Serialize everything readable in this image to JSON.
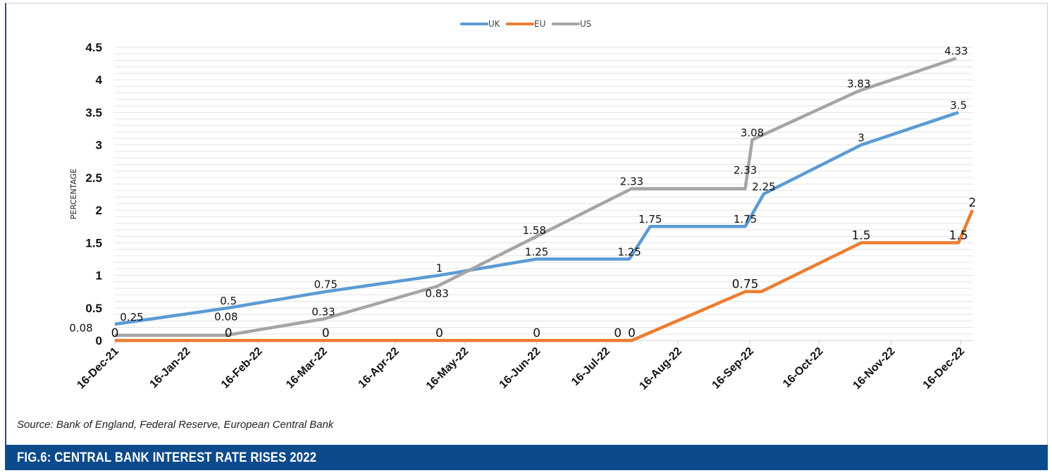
{
  "chart_data": {
    "type": "line",
    "title": "FIG.6: CENTRAL BANK INTEREST RATE RISES 2022",
    "source": "Source: Bank of England, Federal Reserve, European Central Bank",
    "xlabel": "",
    "ylabel": "PERCENTAGE",
    "ylim": [
      0,
      4.5
    ],
    "yticks": [
      "0",
      "0.5",
      "1",
      "1.5",
      "2",
      "2.5",
      "3",
      "3.5",
      "4",
      "4.5"
    ],
    "xrange": [
      "2021-12-16",
      "2022-12-21"
    ],
    "xticks": [
      "16-Dec-21",
      "16-Jan-22",
      "16-Feb-22",
      "16-Mar-22",
      "16-Apr-22",
      "16-May-22",
      "16-Jun-22",
      "16-Jul-22",
      "16-Aug-22",
      "16-Sep-22",
      "16-Oct-22",
      "16-Nov-22",
      "16-Dec-22"
    ],
    "xtick_dates": [
      "2021-12-16",
      "2022-01-16",
      "2022-02-16",
      "2022-03-16",
      "2022-04-16",
      "2022-05-16",
      "2022-06-16",
      "2022-07-16",
      "2022-08-16",
      "2022-09-16",
      "2022-10-16",
      "2022-11-16",
      "2022-12-16"
    ],
    "grid": true,
    "legend": "top-center",
    "series": [
      {
        "name": "UK",
        "color": "#5b9bd5",
        "x": [
          "2021-12-16",
          "2022-02-03",
          "2022-03-17",
          "2022-05-05",
          "2022-06-16",
          "2022-07-26",
          "2022-08-04",
          "2022-09-14",
          "2022-09-22",
          "2022-11-03",
          "2022-12-15"
        ],
        "values": [
          0.25,
          0.5,
          0.75,
          1,
          1.25,
          1.25,
          1.75,
          1.75,
          2.25,
          3,
          3.5
        ],
        "labels": [
          "0.25",
          "0.5",
          "0.75",
          "1",
          "1.25",
          "1.25",
          "1.75",
          "1.75",
          "2.25",
          "3",
          "3.5"
        ]
      },
      {
        "name": "EU",
        "color": "#ed7d31",
        "x": [
          "2021-12-16",
          "2022-02-03",
          "2022-03-17",
          "2022-05-05",
          "2022-06-16",
          "2022-07-21",
          "2022-07-27",
          "2022-09-14",
          "2022-09-21",
          "2022-11-03",
          "2022-12-15",
          "2022-12-21"
        ],
        "values": [
          0,
          0,
          0,
          0,
          0,
          0,
          0,
          0.75,
          0.75,
          1.5,
          1.5,
          2
        ],
        "labels": [
          "0",
          "0",
          "0",
          "0",
          "0",
          "0",
          "0",
          "0.75",
          "",
          "1.5",
          "1.5",
          "2"
        ]
      },
      {
        "name": "US",
        "color": "#a5a5a5",
        "x": [
          "2021-12-16",
          "2022-02-02",
          "2022-03-16",
          "2022-05-04",
          "2022-06-15",
          "2022-07-27",
          "2022-09-14",
          "2022-09-17",
          "2022-11-02",
          "2022-12-14"
        ],
        "values": [
          0.08,
          0.08,
          0.33,
          0.83,
          1.58,
          2.33,
          2.33,
          3.08,
          3.83,
          4.33
        ],
        "labels": [
          "0.08",
          "0.08",
          "0.33",
          "0.83",
          "1.58",
          "2.33",
          "2.33",
          "3.08",
          "3.83",
          "4.33"
        ]
      }
    ]
  }
}
